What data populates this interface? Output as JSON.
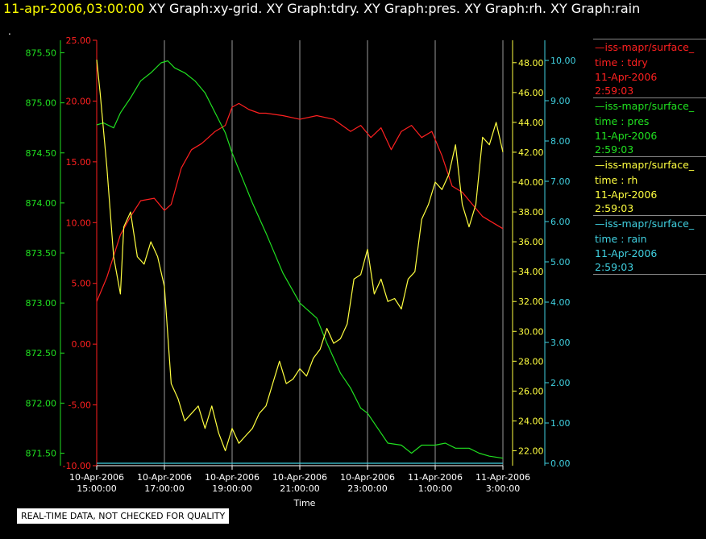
{
  "header": {
    "time": "11-apr-2006,03:00:00",
    "title": " XY Graph:xy-grid.  XY Graph:tdry.  XY Graph:pres.  XY Graph:rh.  XY Graph:rain",
    "dot": "."
  },
  "legend": [
    {
      "name": "—iss-mapr/surface_",
      "var": "time : tdry",
      "date": "11-Apr-2006",
      "time": "2:59:03",
      "color": "#ff2020"
    },
    {
      "name": "—iss-mapr/surface_",
      "var": "time : pres",
      "date": "11-Apr-2006",
      "time": "2:59:03",
      "color": "#20e020"
    },
    {
      "name": "—iss-mapr/surface_",
      "var": "time : rh",
      "date": "11-Apr-2006",
      "time": "2:59:03",
      "color": "#ffff40"
    },
    {
      "name": "—iss-mapr/surface_",
      "var": "time : rain",
      "date": "11-Apr-2006",
      "time": "2:59:03",
      "color": "#40d0e0"
    }
  ],
  "disclaimer": "REAL-TIME DATA, NOT CHECKED FOR QUALITY",
  "chart_data": {
    "type": "line",
    "xlabel": "Time",
    "x_ticks": [
      {
        "l1": "10-Apr-2006",
        "l2": "15:00:00"
      },
      {
        "l1": "10-Apr-2006",
        "l2": "17:00:00"
      },
      {
        "l1": "10-Apr-2006",
        "l2": "19:00:00"
      },
      {
        "l1": "10-Apr-2006",
        "l2": "21:00:00"
      },
      {
        "l1": "10-Apr-2006",
        "l2": "23:00:00"
      },
      {
        "l1": "11-Apr-2006",
        "l2": "1:00:00"
      },
      {
        "l1": "11-Apr-2006",
        "l2": "3:00:00"
      }
    ],
    "x_hours_range": [
      15,
      27
    ],
    "grid": true,
    "axes": {
      "tdry": {
        "color": "#ff2020",
        "ylim": [
          -10,
          25
        ],
        "ticks": [
          "25.00",
          "20.00",
          "15.00",
          "10.00",
          "5.00",
          "0.00",
          "-5.00",
          "-10.00"
        ]
      },
      "pres": {
        "color": "#20e020",
        "ylim": [
          871.375,
          875.625
        ],
        "ticks": [
          "875.50",
          "875.00",
          "874.50",
          "874.00",
          "873.50",
          "873.00",
          "872.50",
          "872.00",
          "871.50"
        ]
      },
      "rh": {
        "color": "#ffff40",
        "ylim": [
          21,
          49.5
        ],
        "ticks": [
          "48.00",
          "46.00",
          "44.00",
          "42.00",
          "40.00",
          "38.00",
          "36.00",
          "34.00",
          "32.00",
          "30.00",
          "28.00",
          "26.00",
          "24.00",
          "22.00"
        ]
      },
      "rain": {
        "color": "#40d0e0",
        "ylim": [
          0,
          10
        ],
        "ticks": [
          "10.00",
          "9.00",
          "8.00",
          "7.00",
          "6.00",
          "5.00",
          "4.00",
          "3.00",
          "2.00",
          "1.00",
          "0.00"
        ]
      }
    },
    "series": [
      {
        "name": "tdry",
        "x": [
          15,
          15.3,
          15.7,
          16,
          16.3,
          16.7,
          17,
          17.2,
          17.5,
          17.8,
          18.1,
          18.5,
          18.8,
          19,
          19.2,
          19.5,
          19.8,
          20,
          20.5,
          21,
          21.5,
          22,
          22.5,
          22.8,
          23.1,
          23.4,
          23.7,
          24,
          24.3,
          24.6,
          24.9,
          25.2,
          25.5,
          25.8,
          26.1,
          26.4,
          26.7,
          27
        ],
        "y": [
          3.5,
          5.5,
          9,
          10.5,
          11.8,
          12,
          11,
          11.5,
          14.5,
          16,
          16.5,
          17.5,
          18,
          19.5,
          19.8,
          19.3,
          19,
          19,
          18.8,
          18.5,
          18.8,
          18.5,
          17.5,
          18,
          17,
          17.8,
          16,
          17.5,
          18,
          17,
          17.5,
          15.5,
          13,
          12.5,
          11.5,
          10.5,
          10,
          9.5
        ]
      },
      {
        "name": "pres",
        "x": [
          15,
          15.2,
          15.5,
          15.7,
          16,
          16.3,
          16.6,
          16.9,
          17.1,
          17.3,
          17.6,
          17.9,
          18.2,
          18.5,
          18.8,
          19,
          19.3,
          19.6,
          20,
          20.5,
          21,
          21.5,
          21.8,
          22.2,
          22.5,
          22.8,
          23,
          23.3,
          23.6,
          24,
          24.3,
          24.6,
          25,
          25.3,
          25.6,
          26,
          26.3,
          26.6,
          27
        ],
        "y": [
          874.78,
          874.8,
          874.75,
          874.9,
          875.05,
          875.22,
          875.3,
          875.4,
          875.42,
          875.35,
          875.3,
          875.22,
          875.1,
          874.9,
          874.7,
          874.5,
          874.25,
          874.0,
          873.7,
          873.3,
          873.0,
          872.85,
          872.6,
          872.3,
          872.15,
          871.95,
          871.9,
          871.75,
          871.6,
          871.58,
          871.5,
          871.58,
          871.58,
          871.6,
          871.55,
          871.55,
          871.5,
          871.47,
          871.45
        ]
      },
      {
        "name": "rh",
        "x": [
          15,
          15.1,
          15.3,
          15.5,
          15.7,
          15.8,
          16,
          16.2,
          16.4,
          16.6,
          16.8,
          17,
          17.2,
          17.4,
          17.6,
          17.8,
          18,
          18.2,
          18.4,
          18.6,
          18.8,
          19,
          19.2,
          19.4,
          19.6,
          19.8,
          20,
          20.2,
          20.4,
          20.6,
          20.8,
          21,
          21.2,
          21.4,
          21.6,
          21.8,
          22,
          22.2,
          22.4,
          22.6,
          22.8,
          23,
          23.2,
          23.4,
          23.6,
          23.8,
          24,
          24.2,
          24.4,
          24.6,
          24.8,
          25,
          25.2,
          25.4,
          25.6,
          25.8,
          26,
          26.2,
          26.4,
          26.6,
          26.8,
          27
        ],
        "y": [
          48.2,
          46,
          41,
          35,
          32.5,
          37,
          38,
          35,
          34.5,
          36,
          35,
          33,
          26.5,
          25.5,
          24,
          24.5,
          25,
          23.5,
          25,
          23.2,
          22,
          23.5,
          22.5,
          23,
          23.5,
          24.5,
          25,
          26.5,
          28,
          26.5,
          26.8,
          27.5,
          27,
          28.2,
          28.8,
          30.2,
          29.2,
          29.5,
          30.5,
          33.5,
          33.8,
          35.5,
          32.5,
          33.5,
          32,
          32.2,
          31.5,
          33.5,
          34,
          37.5,
          38.5,
          40,
          39.5,
          40.5,
          42.5,
          38.5,
          37,
          38.5,
          43,
          42.5,
          44,
          42
        ]
      },
      {
        "name": "rain",
        "x": [
          15,
          27
        ],
        "y": [
          0,
          0
        ]
      }
    ]
  }
}
